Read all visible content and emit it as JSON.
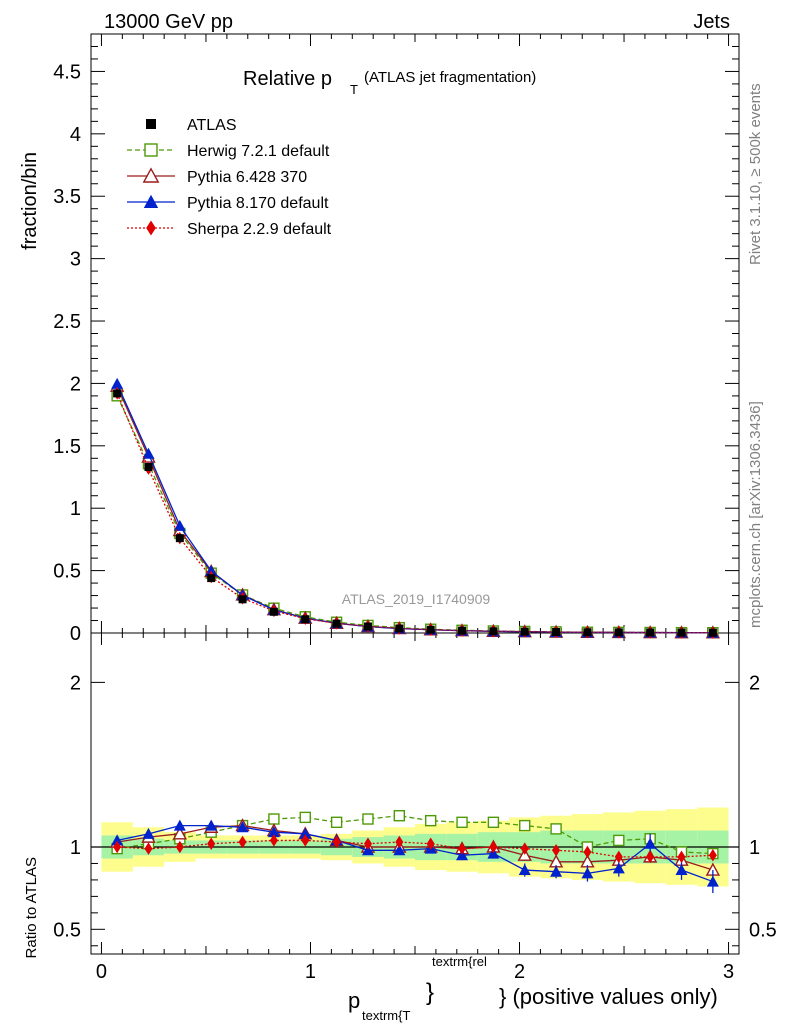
{
  "header": {
    "left": "13000 GeV pp",
    "right": "Jets"
  },
  "side_labels": {
    "rivet": "Rivet 3.1.10, ≥ 500k events",
    "mcplots": "mcplots.cern.ch [arXiv:1306.3436]"
  },
  "watermark": "ATLAS_2019_I1740909",
  "title": {
    "main": "Relative p",
    "sub": "T",
    "suffix": "(ATLAS jet fragmentation)"
  },
  "axes": {
    "ylabel_top": "fraction/bin",
    "ylabel_bottom": "Ratio to ATLAS",
    "xlabel_p": "p",
    "xlabel_sub": "textrm{T",
    "xlabel_sup": "textrm{rel",
    "xlabel_brace": "}",
    "xlabel_tail": "} (positive values only)"
  },
  "chart_data": {
    "type": "line",
    "x": [
      0.075,
      0.225,
      0.375,
      0.525,
      0.675,
      0.825,
      0.975,
      1.125,
      1.275,
      1.425,
      1.575,
      1.725,
      1.875,
      2.025,
      2.175,
      2.325,
      2.475,
      2.625,
      2.775,
      2.925
    ],
    "xlim": [
      -0.05,
      3.05
    ],
    "ylim_top": [
      0,
      4.8
    ],
    "ylim_bottom": [
      0.35,
      2.3
    ],
    "x_ticks": [
      "0",
      "1",
      "2",
      "3"
    ],
    "y_ticks_top": [
      "0",
      "0.5",
      "1",
      "1.5",
      "2",
      "2.5",
      "3",
      "3.5",
      "4",
      "4.5"
    ],
    "y_ticks_bottom": [
      "0.5",
      "1",
      "2"
    ],
    "data": {
      "name": "ATLAS",
      "values": [
        1.92,
        1.33,
        0.76,
        0.44,
        0.27,
        0.17,
        0.11,
        0.075,
        0.052,
        0.036,
        0.026,
        0.019,
        0.014,
        0.011,
        0.008,
        0.006,
        0.005,
        0.004,
        0.003,
        0.0025
      ],
      "band_inner": [
        0.07,
        0.05,
        0.04,
        0.04,
        0.04,
        0.04,
        0.04,
        0.05,
        0.06,
        0.07,
        0.08,
        0.08,
        0.09,
        0.09,
        0.1,
        0.1,
        0.1,
        0.1,
        0.1,
        0.1
      ],
      "band_outer": [
        0.15,
        0.12,
        0.09,
        0.07,
        0.07,
        0.07,
        0.07,
        0.08,
        0.1,
        0.12,
        0.14,
        0.15,
        0.16,
        0.18,
        0.19,
        0.2,
        0.21,
        0.22,
        0.23,
        0.24
      ]
    },
    "series": [
      {
        "name": "Herwig 7.2.1 default",
        "color": "#4e9a06",
        "marker": "open-square",
        "dash": "dashed",
        "ratio": [
          0.99,
          1.02,
          1.05,
          1.09,
          1.13,
          1.17,
          1.18,
          1.15,
          1.17,
          1.19,
          1.16,
          1.15,
          1.15,
          1.13,
          1.11,
          1.0,
          1.04,
          1.05,
          0.97,
          0.96
        ],
        "ratio_err": [
          0,
          0,
          0,
          0,
          0,
          0,
          0,
          0,
          0,
          0,
          0,
          0,
          0,
          0,
          0,
          0,
          0.02,
          0.03,
          0.02,
          0.03
        ]
      },
      {
        "name": "Pythia 6.428 370",
        "color": "#9b1c1c",
        "marker": "open-triangle",
        "dash": "solid",
        "ratio": [
          1.03,
          1.06,
          1.08,
          1.12,
          1.13,
          1.1,
          1.08,
          1.04,
          1.0,
          1.0,
          1.0,
          0.99,
          1.0,
          0.95,
          0.91,
          0.91,
          0.92,
          0.94,
          0.92,
          0.86
        ],
        "ratio_err": [
          0,
          0,
          0,
          0,
          0,
          0,
          0,
          0,
          0,
          0,
          0,
          0,
          0.02,
          0.02,
          0.03,
          0.03,
          0.03,
          0.03,
          0.03,
          0.04
        ]
      },
      {
        "name": "Pythia 8.170 default",
        "color": "#0022cc",
        "marker": "filled-triangle",
        "dash": "solid",
        "ratio": [
          1.04,
          1.08,
          1.13,
          1.13,
          1.12,
          1.09,
          1.08,
          1.04,
          0.98,
          0.98,
          0.99,
          0.95,
          0.96,
          0.86,
          0.85,
          0.84,
          0.87,
          1.02,
          0.86,
          0.79
        ],
        "ratio_err": [
          0,
          0,
          0,
          0,
          0,
          0,
          0,
          0,
          0.02,
          0.02,
          0.02,
          0.03,
          0.03,
          0.04,
          0.04,
          0.05,
          0.05,
          0.06,
          0.06,
          0.07
        ]
      },
      {
        "name": "Sherpa 2.2.9 default",
        "color": "#e00000",
        "marker": "filled-diamond",
        "dash": "dotted",
        "ratio": [
          1.0,
          0.99,
          1.0,
          1.02,
          1.03,
          1.04,
          1.04,
          1.03,
          1.02,
          1.03,
          1.02,
          0.99,
          1.0,
          0.99,
          0.98,
          0.97,
          0.94,
          0.94,
          0.94,
          0.95
        ],
        "ratio_err": [
          0,
          0,
          0,
          0,
          0,
          0,
          0,
          0,
          0,
          0,
          0,
          0,
          0,
          0.02,
          0.02,
          0.02,
          0.02,
          0.02,
          0.02,
          0.03
        ]
      }
    ],
    "legend_position": "top-left"
  },
  "style": {
    "band_outer_color": "#fdfd8e",
    "band_inner_color": "#a6f3a6"
  }
}
